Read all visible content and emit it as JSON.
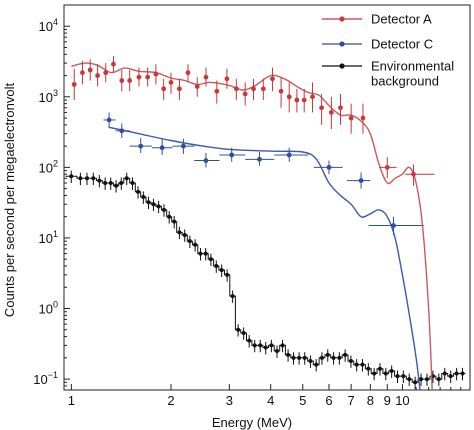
{
  "chart_data": {
    "type": "scatter",
    "title": "",
    "xlabel": "Energy (MeV)",
    "ylabel": "Counts per second per megaelectronvolt",
    "x_scale": "log",
    "y_scale": "log",
    "xlim": [
      0.95,
      16
    ],
    "ylim": [
      0.07,
      20000
    ],
    "grid": false,
    "legend_position": "top-right",
    "x_ticks": [
      {
        "value": 1,
        "label": "1"
      },
      {
        "value": 2,
        "label": "2"
      },
      {
        "value": 3,
        "label": "3"
      },
      {
        "value": 4,
        "label": "4"
      },
      {
        "value": 5,
        "label": "5"
      },
      {
        "value": 6,
        "label": "6"
      },
      {
        "value": 7,
        "label": "7"
      },
      {
        "value": 8,
        "label": "8"
      },
      {
        "value": 9,
        "label": "9"
      },
      {
        "value": 10,
        "label": "10"
      }
    ],
    "y_ticks": [
      {
        "value": 0.1,
        "base": "10",
        "exp": "−1"
      },
      {
        "value": 1,
        "base": "10",
        "exp": "0"
      },
      {
        "value": 10,
        "base": "10",
        "exp": "1"
      },
      {
        "value": 100,
        "base": "10",
        "exp": "2"
      },
      {
        "value": 1000,
        "base": "10",
        "exp": "3"
      },
      {
        "value": 10000,
        "base": "10",
        "exp": "4"
      }
    ],
    "series": [
      {
        "name": "Detector A",
        "color": "#c8373a",
        "fit_color": "#cc5a5c",
        "points": [
          {
            "x": 1.02,
            "y": 1500,
            "lo": 900,
            "hi": 2500
          },
          {
            "x": 1.08,
            "y": 2200,
            "lo": 1500,
            "hi": 3200
          },
          {
            "x": 1.14,
            "y": 2400,
            "lo": 1700,
            "hi": 3400
          },
          {
            "x": 1.2,
            "y": 2000,
            "lo": 1400,
            "hi": 2900
          },
          {
            "x": 1.27,
            "y": 2200,
            "lo": 1600,
            "hi": 3000
          },
          {
            "x": 1.34,
            "y": 2900,
            "lo": 2200,
            "hi": 3800
          },
          {
            "x": 1.42,
            "y": 1700,
            "lo": 1200,
            "hi": 2400
          },
          {
            "x": 1.5,
            "y": 1700,
            "lo": 1200,
            "hi": 2400
          },
          {
            "x": 1.6,
            "y": 1900,
            "lo": 1400,
            "hi": 2600
          },
          {
            "x": 1.7,
            "y": 1900,
            "lo": 1400,
            "hi": 2600
          },
          {
            "x": 1.8,
            "y": 2100,
            "lo": 1500,
            "hi": 2900
          },
          {
            "x": 1.9,
            "y": 1300,
            "lo": 900,
            "hi": 1800
          },
          {
            "x": 2.0,
            "y": 1600,
            "lo": 1100,
            "hi": 2200
          },
          {
            "x": 2.12,
            "y": 1300,
            "lo": 900,
            "hi": 1800
          },
          {
            "x": 2.25,
            "y": 2200,
            "lo": 1600,
            "hi": 2900
          },
          {
            "x": 2.4,
            "y": 1400,
            "lo": 1000,
            "hi": 1900
          },
          {
            "x": 2.55,
            "y": 1900,
            "lo": 1400,
            "hi": 2600
          },
          {
            "x": 2.75,
            "y": 1200,
            "lo": 800,
            "hi": 1700
          },
          {
            "x": 2.95,
            "y": 1800,
            "lo": 1300,
            "hi": 2500
          },
          {
            "x": 3.15,
            "y": 1300,
            "lo": 900,
            "hi": 1800
          },
          {
            "x": 3.35,
            "y": 1100,
            "lo": 750,
            "hi": 1600
          },
          {
            "x": 3.55,
            "y": 1300,
            "lo": 900,
            "hi": 1800
          },
          {
            "x": 3.8,
            "y": 1300,
            "lo": 900,
            "hi": 1800
          },
          {
            "x": 4.05,
            "y": 1800,
            "lo": 1200,
            "hi": 2600
          },
          {
            "x": 4.3,
            "y": 1200,
            "lo": 700,
            "hi": 1900
          },
          {
            "x": 4.55,
            "y": 1000,
            "lo": 600,
            "hi": 1600
          },
          {
            "x": 4.8,
            "y": 900,
            "lo": 600,
            "hi": 1300
          },
          {
            "x": 5.05,
            "y": 900,
            "lo": 600,
            "hi": 1300
          },
          {
            "x": 5.35,
            "y": 1000,
            "lo": 600,
            "hi": 1600
          },
          {
            "x": 5.7,
            "y": 700,
            "lo": 400,
            "hi": 1100
          },
          {
            "x": 6.1,
            "y": 600,
            "lo": 350,
            "hi": 1000
          },
          {
            "x": 6.5,
            "y": 700,
            "lo": 400,
            "hi": 1100
          },
          {
            "x": 7.0,
            "y": 500,
            "lo": 300,
            "hi": 800
          },
          {
            "x": 7.6,
            "y": 500,
            "lo": 300,
            "hi": 800
          },
          {
            "x": 9.0,
            "y": 100,
            "lo": 70,
            "hi": 140,
            "xlo": 8.5,
            "xhi": 9.6
          },
          {
            "x": 10.8,
            "y": 80,
            "lo": 55,
            "hi": 110,
            "xlo": 10.2,
            "xhi": 12.5
          }
        ],
        "fit": [
          [
            1.0,
            2700
          ],
          [
            1.1,
            3000
          ],
          [
            1.2,
            2800
          ],
          [
            1.32,
            2200
          ],
          [
            1.45,
            2550
          ],
          [
            1.6,
            2300
          ],
          [
            1.8,
            2200
          ],
          [
            2.0,
            1850
          ],
          [
            2.2,
            1700
          ],
          [
            2.4,
            1500
          ],
          [
            2.6,
            1600
          ],
          [
            2.8,
            1550
          ],
          [
            3.0,
            1450
          ],
          [
            3.3,
            1250
          ],
          [
            3.6,
            1450
          ],
          [
            4.0,
            2000
          ],
          [
            4.4,
            1800
          ],
          [
            4.8,
            1400
          ],
          [
            5.2,
            1150
          ],
          [
            5.6,
            1050
          ],
          [
            6.0,
            750
          ],
          [
            6.5,
            550
          ],
          [
            7.0,
            550
          ],
          [
            7.5,
            450
          ],
          [
            8.0,
            300
          ],
          [
            8.5,
            110
          ],
          [
            9.0,
            60
          ],
          [
            9.5,
            70
          ],
          [
            10.0,
            80
          ],
          [
            10.5,
            100
          ],
          [
            11.0,
            60
          ],
          [
            11.5,
            15
          ],
          [
            12.0,
            1
          ],
          [
            12.3,
            0.07
          ]
        ]
      },
      {
        "name": "Detector C",
        "color": "#2f4f9e",
        "fit_color": "#3a58b5",
        "points": [
          {
            "x": 1.3,
            "y": 470,
            "lo": 360,
            "hi": 600,
            "xlo": 1.25,
            "xhi": 1.36
          },
          {
            "x": 1.42,
            "y": 330,
            "lo": 260,
            "hi": 420,
            "xlo": 1.36,
            "xhi": 1.5
          },
          {
            "x": 1.62,
            "y": 200,
            "lo": 160,
            "hi": 260,
            "xlo": 1.5,
            "xhi": 1.75
          },
          {
            "x": 1.88,
            "y": 190,
            "lo": 150,
            "hi": 250,
            "xlo": 1.75,
            "xhi": 2.02
          },
          {
            "x": 2.18,
            "y": 200,
            "lo": 155,
            "hi": 255,
            "xlo": 2.02,
            "xhi": 2.35
          },
          {
            "x": 2.55,
            "y": 125,
            "lo": 100,
            "hi": 160,
            "xlo": 2.35,
            "xhi": 2.8
          },
          {
            "x": 3.05,
            "y": 150,
            "lo": 120,
            "hi": 190,
            "xlo": 2.8,
            "xhi": 3.35
          },
          {
            "x": 3.7,
            "y": 130,
            "lo": 105,
            "hi": 165,
            "xlo": 3.35,
            "xhi": 4.1
          },
          {
            "x": 4.55,
            "y": 150,
            "lo": 120,
            "hi": 190,
            "xlo": 4.1,
            "xhi": 5.2
          },
          {
            "x": 6.0,
            "y": 100,
            "lo": 80,
            "hi": 125,
            "xlo": 5.4,
            "xhi": 6.6
          },
          {
            "x": 7.5,
            "y": 65,
            "lo": 50,
            "hi": 85,
            "xlo": 6.8,
            "xhi": 8.0
          },
          {
            "x": 9.4,
            "y": 15,
            "lo": 11,
            "hi": 20,
            "xlo": 7.9,
            "xhi": 11.6
          }
        ],
        "fit": [
          [
            1.3,
            370
          ],
          [
            1.6,
            300
          ],
          [
            2.0,
            240
          ],
          [
            2.5,
            200
          ],
          [
            3.0,
            180
          ],
          [
            4.0,
            170
          ],
          [
            5.0,
            165
          ],
          [
            5.5,
            130
          ],
          [
            6.0,
            60
          ],
          [
            6.5,
            40
          ],
          [
            7.0,
            30
          ],
          [
            7.5,
            20
          ],
          [
            8.0,
            22
          ],
          [
            8.5,
            25
          ],
          [
            9.0,
            20
          ],
          [
            9.5,
            10
          ],
          [
            10.0,
            3
          ],
          [
            10.5,
            0.8
          ],
          [
            11.0,
            0.2
          ],
          [
            11.3,
            0.07
          ]
        ]
      },
      {
        "name": "Environmental background",
        "color": "#111111",
        "edges": [
          0.96,
          1.04,
          1.09,
          1.14,
          1.19,
          1.24,
          1.29,
          1.34,
          1.39,
          1.44,
          1.5,
          1.56,
          1.62,
          1.68,
          1.74,
          1.8,
          1.87,
          1.94,
          2.01,
          2.08,
          2.16,
          2.24,
          2.32,
          2.41,
          2.5,
          2.59,
          2.69,
          2.79,
          2.9,
          3.01,
          3.13,
          3.25,
          3.38,
          3.51,
          3.65,
          3.79,
          3.94,
          4.1,
          4.26,
          4.43,
          4.6,
          4.78,
          4.97,
          5.17,
          5.38,
          5.6,
          5.83,
          6.07,
          6.32,
          6.58,
          6.85,
          7.13,
          7.42,
          7.73,
          8.05,
          8.38,
          8.73,
          9.09,
          9.47,
          9.86,
          10.27,
          10.7,
          11.15,
          11.62,
          12.11,
          12.62,
          13.15,
          13.7,
          14.28,
          14.88,
          15.5
        ],
        "values": [
          75,
          70,
          70,
          70,
          65,
          60,
          60,
          55,
          60,
          70,
          60,
          45,
          38,
          32,
          30,
          28,
          25,
          20,
          17,
          12,
          11,
          9,
          8,
          6,
          6,
          5,
          4,
          3.5,
          3,
          1.5,
          0.5,
          0.45,
          0.35,
          0.3,
          0.3,
          0.28,
          0.3,
          0.25,
          0.3,
          0.22,
          0.2,
          0.2,
          0.2,
          0.18,
          0.16,
          0.2,
          0.22,
          0.2,
          0.2,
          0.22,
          0.18,
          0.16,
          0.16,
          0.14,
          0.12,
          0.14,
          0.12,
          0.13,
          0.11,
          0.11,
          0.1,
          0.09,
          0.1,
          0.1,
          0.11,
          0.1,
          0.12,
          0.11,
          0.12,
          0.12
        ],
        "rel_err": 0.2
      }
    ]
  }
}
